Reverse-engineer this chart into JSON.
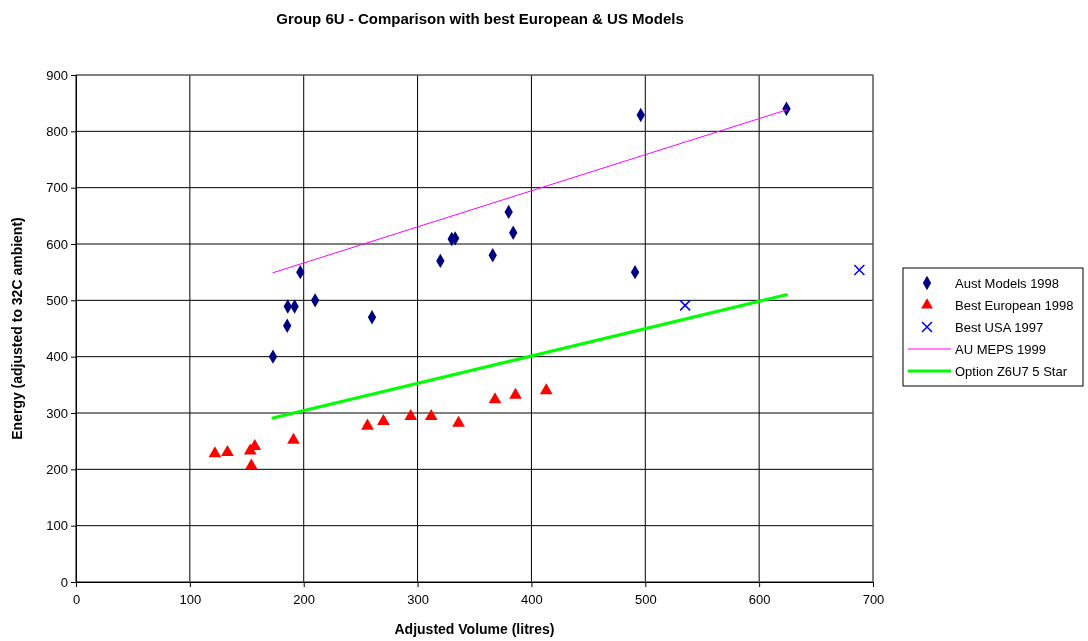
{
  "chart_data": {
    "type": "scatter",
    "title": "Group 6U - Comparison with best European  & US Models",
    "xlabel": "Adjusted Volume (litres)",
    "ylabel": "Energy (adjusted to 32C ambient)",
    "xlim": [
      0,
      700
    ],
    "xticks": [
      0,
      100,
      200,
      300,
      400,
      500,
      600,
      700
    ],
    "ylim": [
      0,
      900
    ],
    "yticks": [
      0,
      100,
      200,
      300,
      400,
      500,
      600,
      700,
      800,
      900
    ],
    "grid": true,
    "legend": "right",
    "series": [
      {
        "name": "Aust Models 1998",
        "color": "#000080",
        "marker": "diamond",
        "x": [
          173,
          185.5,
          186,
          192,
          197,
          210,
          260,
          320,
          330,
          333,
          366,
          380,
          384,
          491,
          496,
          624
        ],
        "values": [
          400,
          455,
          489,
          489,
          550,
          500,
          470,
          570,
          609,
          610,
          580,
          657,
          620,
          550,
          829,
          840
        ]
      },
      {
        "name": "Best European 1998",
        "color": "#ff0000",
        "marker": "triangle",
        "x": [
          122,
          133,
          153,
          157,
          154,
          191,
          256,
          270,
          294,
          312,
          336,
          368,
          386,
          413
        ],
        "values": [
          228,
          230,
          233,
          241,
          206,
          252,
          277,
          285,
          294,
          294,
          282,
          324,
          332,
          340
        ]
      },
      {
        "name": "Best USA 1997",
        "color": "#0000ff",
        "marker": "cross",
        "x": [
          535,
          688
        ],
        "values": [
          491,
          554
        ]
      },
      {
        "name": "AU MEPS 1999",
        "color": "#ff00ff",
        "type": "line",
        "marker": "none",
        "x": [
          173,
          624
        ],
        "values": [
          549,
          838
        ]
      },
      {
        "name": "Option Z6U7 5 Star",
        "color": "#00ff00",
        "type": "line",
        "marker": "none",
        "x": [
          173,
          624
        ],
        "values": [
          291,
          510
        ]
      }
    ]
  }
}
